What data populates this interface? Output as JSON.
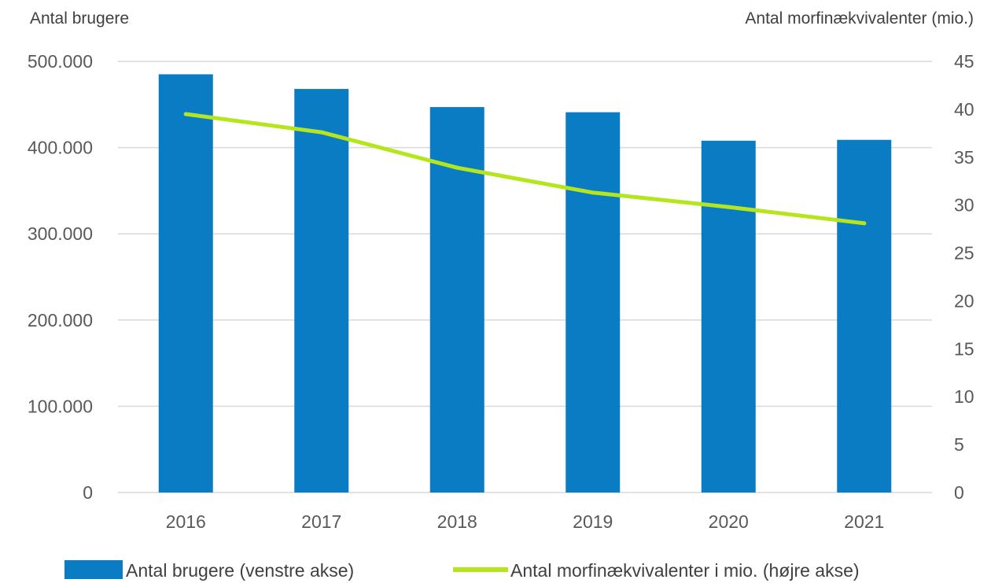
{
  "chart_data": {
    "type": "bar",
    "categories": [
      "2016",
      "2017",
      "2018",
      "2019",
      "2020",
      "2021"
    ],
    "left_axis": {
      "title": "Antal brugere",
      "ylim": [
        0,
        500000
      ],
      "ticks": [
        {
          "value": 0,
          "label": "0"
        },
        {
          "value": 100000,
          "label": "100.000"
        },
        {
          "value": 200000,
          "label": "200.000"
        },
        {
          "value": 300000,
          "label": "300.000"
        },
        {
          "value": 400000,
          "label": "400.000"
        },
        {
          "value": 500000,
          "label": "500.000"
        }
      ]
    },
    "right_axis": {
      "title": "Antal morfinækvivalenter (mio.)",
      "ylim": [
        0,
        45
      ],
      "ticks": [
        {
          "value": 0,
          "label": "0"
        },
        {
          "value": 5,
          "label": "5"
        },
        {
          "value": 10,
          "label": "10"
        },
        {
          "value": 15,
          "label": "15"
        },
        {
          "value": 20,
          "label": "20"
        },
        {
          "value": 25,
          "label": "25"
        },
        {
          "value": 30,
          "label": "30"
        },
        {
          "value": 35,
          "label": "35"
        },
        {
          "value": 40,
          "label": "40"
        },
        {
          "value": 45,
          "label": "45"
        }
      ]
    },
    "series": [
      {
        "name": "Antal brugere (venstre akse)",
        "type": "bar",
        "axis": "left",
        "color": "#0a7cc4",
        "values": [
          485000,
          468000,
          447000,
          441000,
          408000,
          409000
        ]
      },
      {
        "name": "Antal morfinækvivalenter i mio. (højre akse)",
        "type": "line",
        "axis": "right",
        "color": "#b5e61d",
        "values": [
          39.5,
          37.6,
          33.9,
          31.3,
          29.8,
          28.1
        ]
      }
    ],
    "grid": true,
    "legend_position": "bottom"
  }
}
